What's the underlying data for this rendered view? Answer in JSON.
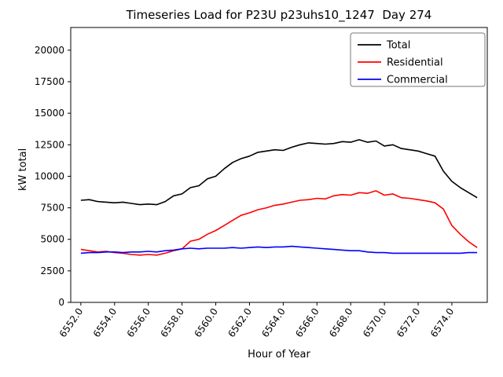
{
  "chart_data": {
    "type": "line",
    "title": "Timeseries Load for P23U p23uhs10_1247  Day 274",
    "xlabel": "Hour of Year",
    "ylabel": "kW total",
    "xlim": [
      6551.4,
      6576.1
    ],
    "ylim": [
      0,
      21800
    ],
    "grid": false,
    "legend_position": "upper right",
    "yticks": [
      0,
      2500,
      5000,
      7500,
      10000,
      12500,
      15000,
      17500,
      20000
    ],
    "xticks": [
      6552,
      6554,
      6556,
      6558,
      6560,
      6562,
      6564,
      6566,
      6568,
      6570,
      6572,
      6574
    ],
    "xtick_labels": [
      "6552.0",
      "6554.0",
      "6556.0",
      "6558.0",
      "6560.0",
      "6562.0",
      "6564.0",
      "6566.0",
      "6568.0",
      "6570.0",
      "6572.0",
      "6574.0"
    ],
    "x": [
      6552.0,
      6552.5,
      6553.0,
      6553.5,
      6554.0,
      6554.5,
      6555.0,
      6555.5,
      6556.0,
      6556.5,
      6557.0,
      6557.5,
      6558.0,
      6558.5,
      6559.0,
      6559.5,
      6560.0,
      6560.5,
      6561.0,
      6561.5,
      6562.0,
      6562.5,
      6563.0,
      6563.5,
      6564.0,
      6564.5,
      6565.0,
      6565.5,
      6566.0,
      6566.5,
      6567.0,
      6567.5,
      6568.0,
      6568.5,
      6569.0,
      6569.5,
      6570.0,
      6570.5,
      6571.0,
      6571.5,
      6572.0,
      6572.5,
      6573.0,
      6573.5,
      6574.0,
      6574.5,
      6575.0,
      6575.5
    ],
    "series": [
      {
        "name": "Total",
        "color": "#000000",
        "values": [
          8100,
          8150,
          8000,
          7950,
          7900,
          7950,
          7850,
          7750,
          7800,
          7750,
          8000,
          8450,
          8600,
          9100,
          9250,
          9800,
          10000,
          10600,
          11100,
          11400,
          11600,
          11900,
          12000,
          12100,
          12050,
          12300,
          12500,
          12650,
          12600,
          12550,
          12600,
          12750,
          12700,
          12900,
          12700,
          12800,
          12400,
          12500,
          12200,
          12100,
          12000,
          11800,
          11600,
          10400,
          9600,
          9100,
          8700,
          8300
        ]
      },
      {
        "name": "Residential",
        "color": "#ff0000",
        "values": [
          4200,
          4100,
          4000,
          4050,
          3950,
          3900,
          3800,
          3750,
          3800,
          3750,
          3900,
          4100,
          4250,
          4850,
          5000,
          5400,
          5700,
          6100,
          6500,
          6900,
          7100,
          7350,
          7500,
          7700,
          7800,
          7950,
          8100,
          8150,
          8250,
          8200,
          8450,
          8550,
          8500,
          8700,
          8650,
          8850,
          8500,
          8600,
          8300,
          8250,
          8150,
          8050,
          7900,
          7400,
          6100,
          5400,
          4800,
          4350
        ]
      },
      {
        "name": "Commercial",
        "color": "#0000ff",
        "values": [
          3900,
          3950,
          3950,
          4000,
          4000,
          3950,
          4000,
          4000,
          4050,
          4000,
          4100,
          4150,
          4250,
          4300,
          4250,
          4300,
          4300,
          4300,
          4350,
          4300,
          4350,
          4400,
          4350,
          4400,
          4400,
          4450,
          4400,
          4350,
          4300,
          4250,
          4200,
          4150,
          4100,
          4100,
          4000,
          3950,
          3950,
          3900,
          3900,
          3900,
          3900,
          3900,
          3900,
          3900,
          3900,
          3900,
          3950,
          3950
        ]
      }
    ]
  }
}
